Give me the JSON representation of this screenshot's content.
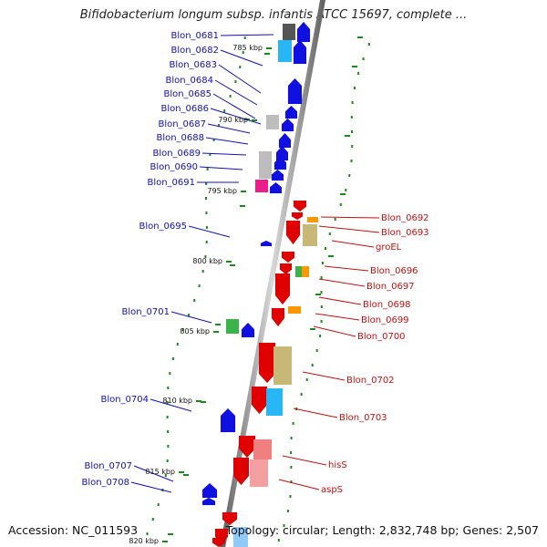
{
  "title": "Bifidobacterium longum subsp. infantis ATCC 15697, complete ...",
  "footer": {
    "accession": "Accession: NC_011593",
    "topology": "Topology: circular;",
    "length": "Length: 2,832,748 bp;",
    "genes": "Genes: 2,507"
  },
  "colors": {
    "forward": "#e00000",
    "reverse": "#1010e0",
    "backbone": "#888888",
    "gc_dots": "#1a8a1a",
    "label_blue": "#1010b8",
    "label_red": "#c01010"
  },
  "kbp_marks": [
    "785 kbp",
    "790 kbp",
    "795 kbp",
    "800 kbp",
    "805 kbp",
    "810 kbp",
    "815 kbp",
    "820 kbp"
  ],
  "left_labels": [
    "Blon_0681",
    "Blon_0682",
    "Blon_0683",
    "Blon_0684",
    "Blon_0685",
    "Blon_0686",
    "Blon_0687",
    "Blon_0688",
    "Blon_0689",
    "Blon_0690",
    "Blon_0691",
    "Blon_0695",
    "Blon_0701",
    "Blon_0704",
    "Blon_0707",
    "Blon_0708"
  ],
  "right_labels": [
    "Blon_0692",
    "Blon_0693",
    "groEL",
    "Blon_0696",
    "Blon_0697",
    "Blon_0698",
    "Blon_0699",
    "Blon_0700",
    "Blon_0702",
    "Blon_0703",
    "hisS",
    "aspS"
  ]
}
